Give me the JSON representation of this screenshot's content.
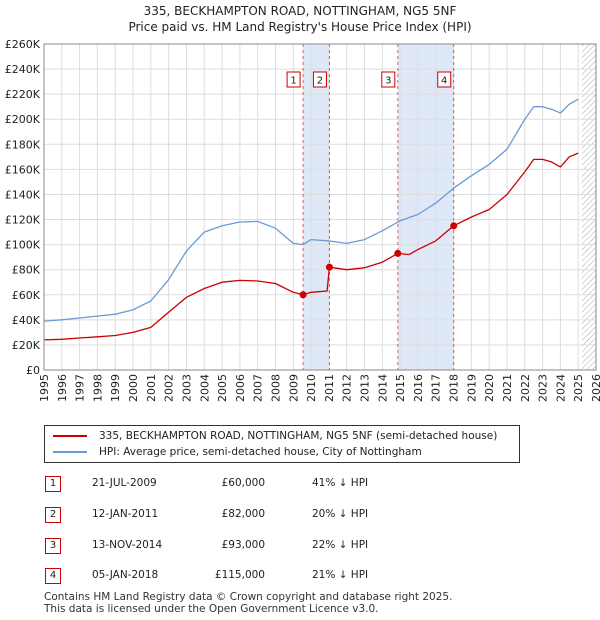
{
  "title_line1": "335, BECKHAMPTON ROAD, NOTTINGHAM, NG5 5NF",
  "title_line2": "Price paid vs. HM Land Registry's House Price Index (HPI)",
  "colors": {
    "property": "#cc0000",
    "hpi": "#6a9ad4",
    "shade": "#dfe8f7",
    "marker_line": "#cc0000",
    "hatch": "#999999",
    "grid": "#dddddd"
  },
  "legend": {
    "property": "335, BECKHAMPTON ROAD, NOTTINGHAM, NG5 5NF (semi-detached house)",
    "hpi": "HPI: Average price, semi-detached house, City of Nottingham"
  },
  "sales": [
    {
      "num": "1",
      "date": "21-JUL-2009",
      "price": "£60,000",
      "diff": "41% ↓ HPI"
    },
    {
      "num": "2",
      "date": "12-JAN-2011",
      "price": "£82,000",
      "diff": "20% ↓ HPI"
    },
    {
      "num": "3",
      "date": "13-NOV-2014",
      "price": "£93,000",
      "diff": "22% ↓ HPI"
    },
    {
      "num": "4",
      "date": "05-JAN-2018",
      "price": "£115,000",
      "diff": "21% ↓ HPI"
    }
  ],
  "footer_line1": "Contains HM Land Registry data © Crown copyright and database right 2025.",
  "footer_line2": "This data is licensed under the Open Government Licence v3.0.",
  "chart_data": {
    "type": "line",
    "title": "Price paid vs. HM Land Registry's House Price Index (HPI)",
    "xlim": [
      1995,
      2026
    ],
    "ylim": [
      0,
      260000
    ],
    "x_ticks": [
      "1995",
      "1996",
      "1997",
      "1998",
      "1999",
      "2000",
      "2001",
      "2002",
      "2003",
      "2004",
      "2005",
      "2006",
      "2007",
      "2008",
      "2009",
      "2010",
      "2011",
      "2012",
      "2013",
      "2014",
      "2015",
      "2016",
      "2017",
      "2018",
      "2019",
      "2020",
      "2021",
      "2022",
      "2023",
      "2024",
      "2025",
      "2026"
    ],
    "y_ticks": [
      {
        "value": 0,
        "label": "£0"
      },
      {
        "value": 20000,
        "label": "£20K"
      },
      {
        "value": 40000,
        "label": "£40K"
      },
      {
        "value": 60000,
        "label": "£60K"
      },
      {
        "value": 80000,
        "label": "£80K"
      },
      {
        "value": 100000,
        "label": "£100K"
      },
      {
        "value": 120000,
        "label": "£120K"
      },
      {
        "value": 140000,
        "label": "£140K"
      },
      {
        "value": 160000,
        "label": "£160K"
      },
      {
        "value": 180000,
        "label": "£180K"
      },
      {
        "value": 200000,
        "label": "£200K"
      },
      {
        "value": 220000,
        "label": "£220K"
      },
      {
        "value": 240000,
        "label": "£240K"
      },
      {
        "value": 260000,
        "label": "£260K"
      }
    ],
    "shaded_periods": [
      {
        "from": 2009.55,
        "to": 2011.03
      },
      {
        "from": 2014.87,
        "to": 2018.01
      }
    ],
    "sale_markers": [
      {
        "label": "1",
        "x": 2009.55,
        "y": 60000
      },
      {
        "label": "2",
        "x": 2011.03,
        "y": 82000
      },
      {
        "label": "3",
        "x": 2014.87,
        "y": 93000
      },
      {
        "label": "4",
        "x": 2018.01,
        "y": 115000
      }
    ],
    "future_hatch_from": 2025.2,
    "series": [
      {
        "name": "335, BECKHAMPTON ROAD, NOTTINGHAM, NG5 5NF (semi-detached house)",
        "x": [
          1995,
          1996,
          1997,
          1998,
          1999,
          2000,
          2001,
          2002,
          2003,
          2004,
          2005,
          2006,
          2007,
          2008,
          2009,
          2009.55,
          2010,
          2010.9,
          2011.03,
          2012,
          2013,
          2014,
          2014.87,
          2015.5,
          2016,
          2017,
          2018.01,
          2019,
          2020,
          2021,
          2022,
          2022.5,
          2023,
          2023.5,
          2024,
          2024.5,
          2025
        ],
        "y": [
          24000,
          24500,
          25500,
          26500,
          27500,
          30000,
          34000,
          46000,
          58000,
          65000,
          70000,
          71500,
          71000,
          69000,
          62000,
          60000,
          62000,
          63000,
          82000,
          80000,
          81500,
          86000,
          93000,
          92000,
          96000,
          103000,
          115000,
          122000,
          128000,
          140000,
          158000,
          168000,
          168000,
          166000,
          162000,
          170000,
          173000
        ]
      },
      {
        "name": "HPI: Average price, semi-detached house, City of Nottingham",
        "x": [
          1995,
          1996,
          1997,
          1998,
          1999,
          2000,
          2001,
          2002,
          2003,
          2004,
          2005,
          2006,
          2007,
          2008,
          2009,
          2009.55,
          2010,
          2011,
          2012,
          2013,
          2014,
          2015,
          2016,
          2017,
          2018,
          2019,
          2020,
          2021,
          2022,
          2022.5,
          2023,
          2023.5,
          2024,
          2024.5,
          2025
        ],
        "y": [
          39000,
          40000,
          41500,
          43000,
          44500,
          48000,
          55000,
          72000,
          95000,
          110000,
          115000,
          118000,
          118500,
          113000,
          101000,
          100000,
          104000,
          103000,
          101000,
          104000,
          111000,
          119000,
          124000,
          133000,
          145000,
          155000,
          164000,
          176000,
          200000,
          210000,
          210000,
          208000,
          205000,
          212000,
          216000
        ]
      }
    ]
  }
}
